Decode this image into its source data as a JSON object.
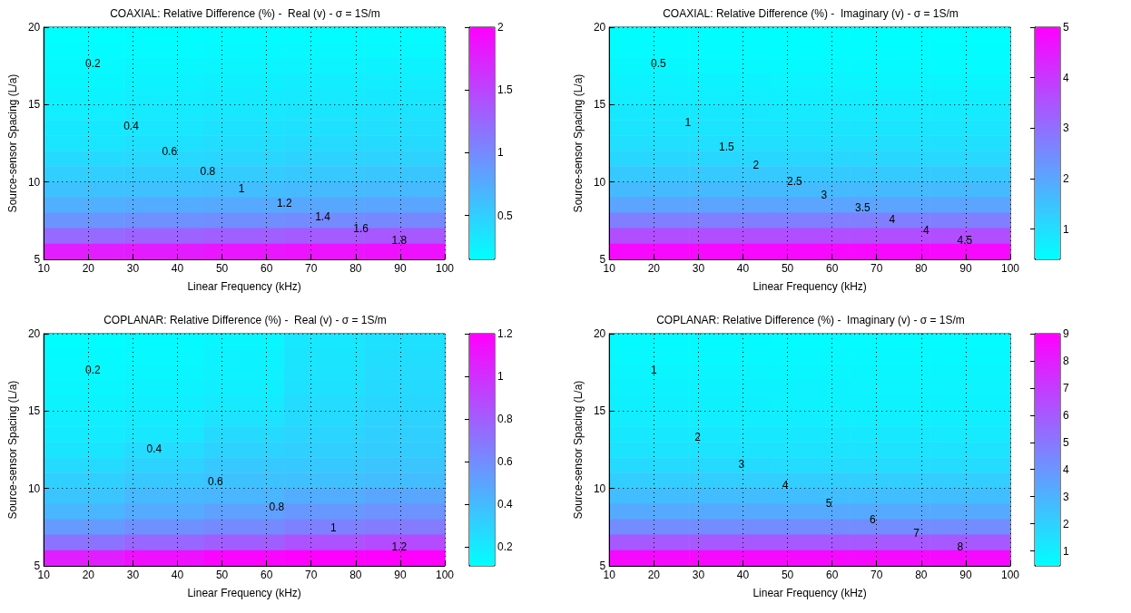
{
  "chart_data": [
    {
      "type": "heatmap",
      "title": "COAXIAL: Relative Difference (%) -  Real (v) - σ = 1S/m",
      "xlabel": "Linear Frequency (kHz)",
      "ylabel": "Source-sensor Spacing (L/a)",
      "xlim": [
        10,
        100
      ],
      "xticks": [
        10,
        20,
        30,
        40,
        50,
        60,
        70,
        80,
        90,
        100
      ],
      "ylim": [
        5,
        20
      ],
      "yticks": [
        5,
        10,
        15,
        20
      ],
      "grid": true,
      "clim": [
        0.15,
        2
      ],
      "cticks": [
        0.5,
        1,
        1.5,
        2
      ],
      "cells": [
        [
          0.15,
          0.16,
          0.17,
          0.17,
          0.18
        ],
        [
          0.17,
          0.18,
          0.19,
          0.2,
          0.2
        ],
        [
          0.19,
          0.21,
          0.22,
          0.23,
          0.24
        ],
        [
          0.21,
          0.24,
          0.26,
          0.27,
          0.28
        ],
        [
          0.24,
          0.27,
          0.29,
          0.3,
          0.31
        ],
        [
          0.27,
          0.3,
          0.32,
          0.34,
          0.35
        ],
        [
          0.31,
          0.33,
          0.36,
          0.37,
          0.38
        ],
        [
          0.34,
          0.37,
          0.39,
          0.41,
          0.42
        ],
        [
          0.41,
          0.43,
          0.45,
          0.47,
          0.48
        ],
        [
          0.5,
          0.51,
          0.53,
          0.55,
          0.56
        ],
        [
          0.59,
          0.61,
          0.63,
          0.65,
          0.66
        ],
        [
          0.73,
          0.75,
          0.77,
          0.79,
          0.8
        ],
        [
          0.92,
          0.95,
          0.97,
          0.99,
          1.01
        ],
        [
          1.24,
          1.28,
          1.31,
          1.34,
          1.36
        ],
        [
          1.78,
          1.8,
          1.83,
          1.86,
          1.88
        ]
      ],
      "annotations": [
        "0.2",
        "0.4",
        "0.6",
        "0.8",
        "1",
        "1.2",
        "1.4",
        "1.6",
        "1.8"
      ]
    },
    {
      "type": "heatmap",
      "title": "COAXIAL: Relative Difference (%) -  Imaginary (v) - σ = 1S/m",
      "xlabel": "Linear Frequency (kHz)",
      "ylabel": "Source-sensor Spacing (L/a)",
      "xlim": [
        10,
        100
      ],
      "xticks": [
        10,
        20,
        30,
        40,
        50,
        60,
        70,
        80,
        90,
        100
      ],
      "ylim": [
        5,
        20
      ],
      "yticks": [
        5,
        10,
        15,
        20
      ],
      "grid": true,
      "clim": [
        0.4,
        5
      ],
      "cticks": [
        1,
        2,
        3,
        4,
        5
      ],
      "cells": [
        [
          0.44,
          0.43,
          0.42,
          0.41,
          0.4
        ],
        [
          0.48,
          0.47,
          0.46,
          0.45,
          0.44
        ],
        [
          0.54,
          0.53,
          0.51,
          0.5,
          0.48
        ],
        [
          0.62,
          0.61,
          0.6,
          0.58,
          0.56
        ],
        [
          0.71,
          0.7,
          0.69,
          0.68,
          0.67
        ],
        [
          0.8,
          0.79,
          0.78,
          0.77,
          0.76
        ],
        [
          0.89,
          0.89,
          0.88,
          0.87,
          0.86
        ],
        [
          0.98,
          0.98,
          0.97,
          0.97,
          0.96
        ],
        [
          1.13,
          1.13,
          1.12,
          1.12,
          1.11
        ],
        [
          1.37,
          1.37,
          1.36,
          1.36,
          1.35
        ],
        [
          1.65,
          1.65,
          1.65,
          1.64,
          1.64
        ],
        [
          2.05,
          2.05,
          2.05,
          2.05,
          2.05
        ],
        [
          2.7,
          2.7,
          2.7,
          2.7,
          2.7
        ],
        [
          3.6,
          3.6,
          3.6,
          3.6,
          3.6
        ],
        [
          4.85,
          4.85,
          4.85,
          4.85,
          4.85
        ]
      ],
      "annotations": [
        "0.5",
        "1",
        "1.5",
        "2",
        "2.5",
        "3",
        "3.5",
        "4",
        "4",
        "4.5"
      ]
    },
    {
      "type": "heatmap",
      "title": "COPLANAR: Relative Difference (%) -  Real (v) - σ = 1S/m",
      "xlabel": "Linear Frequency (kHz)",
      "ylabel": "Source-sensor Spacing (L/a)",
      "xlim": [
        10,
        100
      ],
      "xticks": [
        10,
        20,
        30,
        40,
        50,
        60,
        70,
        80,
        90,
        100
      ],
      "ylim": [
        5,
        20
      ],
      "yticks": [
        5,
        10,
        15,
        20
      ],
      "grid": true,
      "clim": [
        0.11,
        1.2
      ],
      "cticks": [
        0.2,
        0.4,
        0.6,
        0.8,
        1,
        1.2
      ],
      "cells": [
        [
          0.12,
          0.13,
          0.15,
          0.21,
          0.24
        ],
        [
          0.13,
          0.14,
          0.16,
          0.22,
          0.25
        ],
        [
          0.14,
          0.15,
          0.17,
          0.23,
          0.26
        ],
        [
          0.15,
          0.16,
          0.18,
          0.24,
          0.27
        ],
        [
          0.16,
          0.18,
          0.2,
          0.26,
          0.28
        ],
        [
          0.18,
          0.19,
          0.23,
          0.27,
          0.3
        ],
        [
          0.19,
          0.21,
          0.27,
          0.29,
          0.31
        ],
        [
          0.22,
          0.26,
          0.3,
          0.31,
          0.33
        ],
        [
          0.27,
          0.3,
          0.34,
          0.34,
          0.36
        ],
        [
          0.31,
          0.34,
          0.37,
          0.38,
          0.39
        ],
        [
          0.36,
          0.41,
          0.42,
          0.46,
          0.49
        ],
        [
          0.42,
          0.47,
          0.51,
          0.55,
          0.57
        ],
        [
          0.54,
          0.58,
          0.61,
          0.65,
          0.67
        ],
        [
          0.71,
          0.76,
          0.8,
          0.85,
          0.88
        ],
        [
          1.07,
          1.13,
          1.18,
          1.2,
          1.2
        ]
      ],
      "annotations": [
        "0.2",
        "0.4",
        "0.6",
        "0.8",
        "1",
        "1.2"
      ]
    },
    {
      "type": "heatmap",
      "title": "COPLANAR: Relative Difference (%) -  Imaginary (v) - σ = 1S/m",
      "xlabel": "Linear Frequency (kHz)",
      "ylabel": "Source-sensor Spacing (L/a)",
      "xlim": [
        10,
        100
      ],
      "xticks": [
        10,
        20,
        30,
        40,
        50,
        60,
        70,
        80,
        90,
        100
      ],
      "ylim": [
        5,
        20
      ],
      "yticks": [
        5,
        10,
        15,
        20
      ],
      "grid": true,
      "clim": [
        0.45,
        9
      ],
      "cticks": [
        1,
        2,
        3,
        4,
        5,
        6,
        7,
        8,
        9
      ],
      "cells": [
        [
          0.62,
          0.61,
          0.6,
          0.59,
          0.58
        ],
        [
          0.7,
          0.69,
          0.68,
          0.67,
          0.66
        ],
        [
          0.78,
          0.77,
          0.76,
          0.75,
          0.74
        ],
        [
          0.86,
          0.85,
          0.84,
          0.83,
          0.82
        ],
        [
          0.95,
          0.94,
          0.93,
          0.92,
          0.9
        ],
        [
          1.04,
          1.03,
          1.02,
          1.0,
          0.99
        ],
        [
          1.2,
          1.19,
          1.19,
          1.18,
          1.17
        ],
        [
          1.4,
          1.4,
          1.39,
          1.39,
          1.38
        ],
        [
          1.65,
          1.65,
          1.64,
          1.64,
          1.63
        ],
        [
          2.1,
          2.1,
          2.09,
          2.09,
          2.08
        ],
        [
          2.65,
          2.65,
          2.64,
          2.64,
          2.63
        ],
        [
          3.3,
          3.3,
          3.3,
          3.3,
          3.3
        ],
        [
          4.3,
          4.3,
          4.3,
          4.3,
          4.3
        ],
        [
          6.0,
          6.0,
          6.0,
          6.0,
          6.0
        ],
        [
          8.7,
          8.7,
          8.7,
          8.7,
          8.7
        ]
      ],
      "annotations": [
        "1",
        "2",
        "3",
        "4",
        "5",
        "6",
        "7",
        "8"
      ]
    }
  ]
}
